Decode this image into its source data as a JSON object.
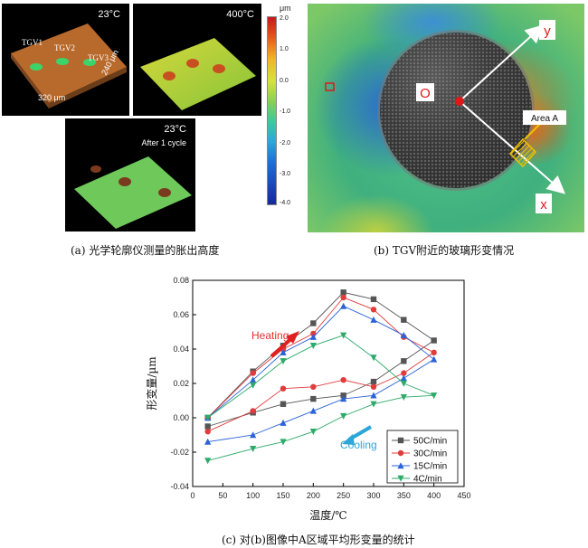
{
  "panel_a": {
    "images": [
      {
        "temp": "23°C",
        "labels": [
          "TGV1",
          "TGV2",
          "TGV3"
        ],
        "dim_x": "320 μm",
        "dim_y": "240 μm"
      },
      {
        "temp": "400°C"
      },
      {
        "temp": "23°C",
        "note": "After 1 cycle"
      }
    ],
    "colorbar": {
      "unit": "μm",
      "ticks": [
        "2.0",
        "1.0",
        "0.0",
        "-1.0",
        "-2.0",
        "-3.0",
        "-4.0"
      ]
    },
    "caption": "(a) 光学轮廓仪测量的胀出高度"
  },
  "panel_b": {
    "origin_label": "O",
    "x_label": "x",
    "y_label": "y",
    "area_label": "Area A",
    "caption": "(b) TGV附近的玻璃形变情况"
  },
  "chart_data": {
    "type": "line",
    "xlabel": "温度/℃",
    "ylabel": "形变量/µm",
    "xlim": [
      0,
      450
    ],
    "ylim": [
      -0.04,
      0.08
    ],
    "xticks": [
      0,
      50,
      100,
      150,
      200,
      250,
      300,
      350,
      400,
      450
    ],
    "yticks": [
      -0.04,
      -0.02,
      0.0,
      0.02,
      0.04,
      0.06,
      0.08
    ],
    "ytick_labels": [
      "-0.04",
      "-0.02",
      "0.00",
      "0.02",
      "0.04",
      "0.06",
      "0.08"
    ],
    "annotations": [
      "Heating",
      "Cooling"
    ],
    "legend_position": "bottom-right",
    "series": [
      {
        "name": "50C/min",
        "color": "#555555",
        "marker": "square",
        "x": [
          25,
          100,
          150,
          200,
          250,
          300,
          350,
          400,
          350,
          300,
          250,
          200,
          150,
          100,
          25
        ],
        "y": [
          0.0,
          0.027,
          0.042,
          0.055,
          0.073,
          0.069,
          0.057,
          0.045,
          0.033,
          0.021,
          0.013,
          0.011,
          0.008,
          0.003,
          -0.005
        ]
      },
      {
        "name": "30C/min",
        "color": "#e03c3c",
        "marker": "circle",
        "x": [
          25,
          100,
          150,
          200,
          250,
          300,
          350,
          400,
          350,
          300,
          250,
          200,
          150,
          100,
          25
        ],
        "y": [
          0.0,
          0.026,
          0.04,
          0.049,
          0.07,
          0.063,
          0.047,
          0.038,
          0.026,
          0.018,
          0.022,
          0.018,
          0.017,
          0.004,
          -0.008
        ]
      },
      {
        "name": "15C/min",
        "color": "#2a62d8",
        "marker": "triangle-up",
        "x": [
          25,
          100,
          150,
          200,
          250,
          300,
          350,
          400,
          350,
          300,
          250,
          200,
          150,
          100,
          25
        ],
        "y": [
          0.0,
          0.022,
          0.038,
          0.047,
          0.065,
          0.057,
          0.048,
          0.034,
          0.023,
          0.013,
          0.011,
          0.004,
          -0.003,
          -0.01,
          -0.014
        ]
      },
      {
        "name": "4C/min",
        "color": "#2eaa6a",
        "marker": "triangle-down",
        "x": [
          25,
          100,
          150,
          200,
          250,
          300,
          350,
          400,
          350,
          300,
          250,
          200,
          150,
          100,
          25
        ],
        "y": [
          0.0,
          0.019,
          0.033,
          0.042,
          0.048,
          0.035,
          0.02,
          0.013,
          0.012,
          0.008,
          0.001,
          -0.008,
          -0.014,
          -0.018,
          -0.025
        ]
      }
    ],
    "caption": "(c) 对(b)图像中A区域平均形变量的统计"
  }
}
